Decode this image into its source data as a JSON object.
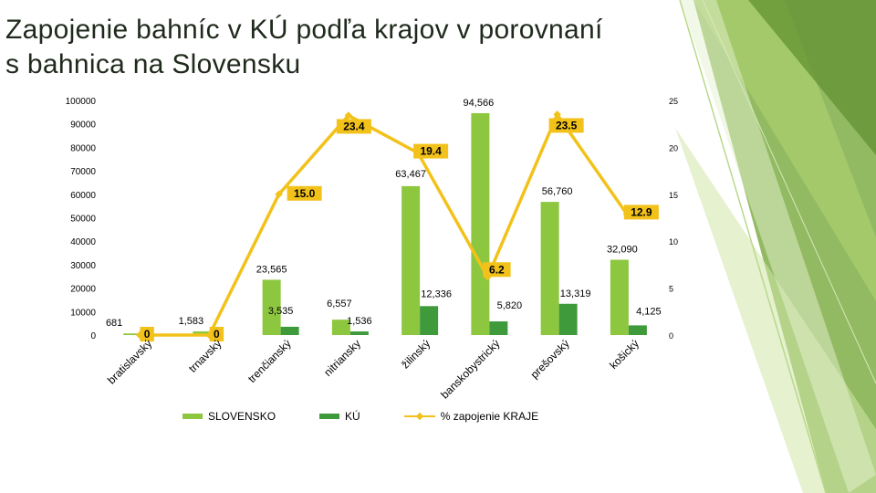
{
  "slide": {
    "title_line1": "Zapojenie bahníc v KÚ podľa krajov v porovnaní",
    "title_line2": "s bahnica na Slovensku"
  },
  "colors": {
    "slovensko": "#8dc63f",
    "ku": "#3f9a3c",
    "line": "#f2c21b",
    "pct_label_bg": "#f2c21b",
    "grid": "#d9d9d9"
  },
  "legend": {
    "slovensko": "SLOVENSKO",
    "ku": "KÚ",
    "pct": "% zapojenie KRAJE"
  },
  "chart_data": {
    "type": "bar",
    "categories": [
      "bratislavský",
      "trnavský",
      "trenčianský",
      "nitriansky",
      "žilinský",
      "banskobystrický",
      "prešovský",
      "košický"
    ],
    "series": [
      {
        "name": "SLOVENSKO",
        "type": "bar",
        "axis": "left",
        "values": [
          681,
          1583,
          23565,
          6557,
          63467,
          94566,
          56760,
          32090
        ],
        "labels": [
          "681",
          "1,583",
          "23,565",
          "6,557",
          "63,467",
          "94,566",
          "56,760",
          "32,090"
        ]
      },
      {
        "name": "KÚ",
        "type": "bar",
        "axis": "left",
        "values": [
          0,
          0,
          3535,
          1536,
          12336,
          5820,
          13319,
          4125
        ],
        "labels": [
          "",
          "",
          "3,535",
          "1,536",
          "12,336",
          "5,820",
          "13,319",
          "4,125"
        ]
      },
      {
        "name": "% zapojenie KRAJE",
        "type": "line",
        "axis": "right",
        "values": [
          0,
          0,
          15.0,
          23.4,
          19.4,
          6.2,
          23.5,
          12.9
        ],
        "labels": [
          "0",
          "0",
          "15.0",
          "23.4",
          "19.4",
          "6.2",
          "23.5",
          "12.9"
        ]
      }
    ],
    "y_left": {
      "ylim": [
        0,
        100000
      ],
      "ticks": [
        "0",
        "10000",
        "20000",
        "30000",
        "40000",
        "50000",
        "60000",
        "70000",
        "80000",
        "90000",
        "100000"
      ]
    },
    "y_right": {
      "ylim": [
        0,
        25
      ],
      "ticks": [
        "0",
        "5",
        "10",
        "15",
        "20",
        "25"
      ]
    },
    "grid": false,
    "legend_position": "bottom"
  }
}
